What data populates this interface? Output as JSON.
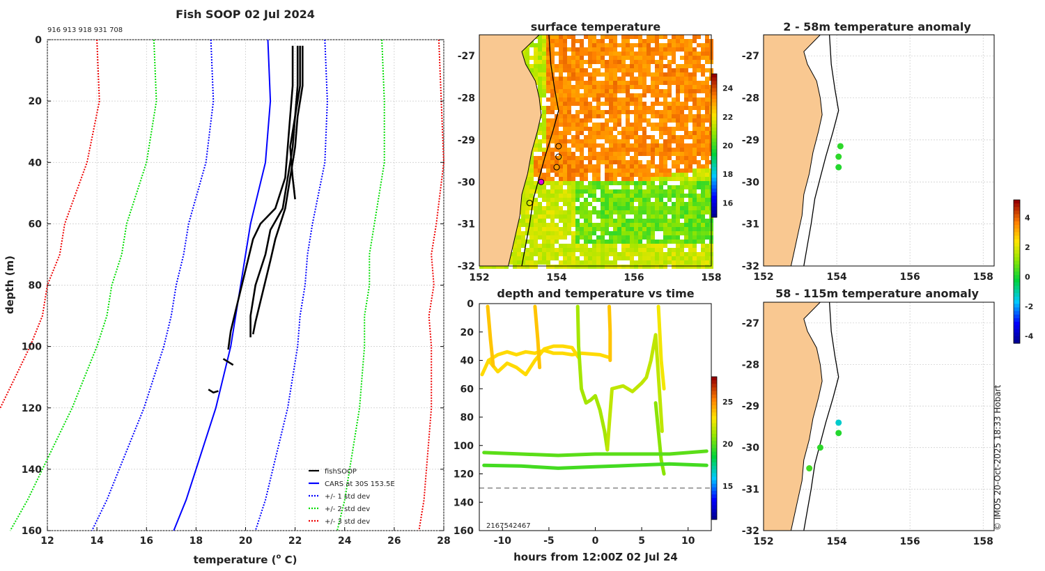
{
  "page_header": {
    "copyright": "© IMOS 20-Oct-2025 18:33 Hobart"
  },
  "chart_data": [
    {
      "id": "profile",
      "type": "line",
      "title": "Fish SOOP 02 Jul 2024",
      "id_text": "916 913 918 931 708",
      "xlabel": "temperature",
      "xlabel_sup": "o",
      "xlabel_tail": " C)",
      "ylabel": "depth (m)",
      "xlim": [
        12,
        28
      ],
      "ylim": [
        0,
        160
      ],
      "y_inverted": true,
      "xticks": [
        12,
        14,
        16,
        18,
        20,
        22,
        24,
        26,
        28
      ],
      "yticks": [
        0,
        20,
        40,
        60,
        80,
        100,
        120,
        140,
        160
      ],
      "legend_position": "bottom-right",
      "legend": [
        {
          "label": "fishSOOP",
          "color": "#000000",
          "style": "solid"
        },
        {
          "label": "CARS at 30S 153.5E",
          "color": "#0000ff",
          "style": "solid"
        },
        {
          "label": "+/- 1 std dev",
          "color": "#0000ff",
          "style": "dotted"
        },
        {
          "label": "+/- 2 std dev",
          "color": "#00dd00",
          "style": "dotted"
        },
        {
          "label": "+/- 3 std dev",
          "color": "#ee0000",
          "style": "dotted"
        }
      ],
      "cars_depth": [
        0,
        20,
        40,
        60,
        70,
        80,
        90,
        100,
        110,
        120,
        130,
        140,
        150,
        160
      ],
      "cars_mean": [
        20.9,
        21.0,
        20.8,
        20.2,
        20.0,
        19.8,
        19.6,
        19.4,
        19.1,
        18.8,
        18.4,
        18.0,
        17.6,
        17.1
      ],
      "std_dev": [
        2.3,
        2.3,
        2.4,
        2.5,
        2.5,
        2.6,
        2.6,
        2.7,
        2.8,
        2.9,
        3.0,
        3.1,
        3.2,
        3.3
      ],
      "fish_profiles": [
        {
          "depth": [
            2,
            15,
            25,
            35,
            45,
            55,
            60,
            65,
            75,
            85,
            95,
            101
          ],
          "temp": [
            21.9,
            21.9,
            21.8,
            21.7,
            21.6,
            21.2,
            20.6,
            20.3,
            20.0,
            19.7,
            19.4,
            19.3
          ]
        },
        {
          "depth": [
            2,
            15,
            25,
            35,
            45,
            55,
            62,
            70,
            80,
            90,
            97
          ],
          "temp": [
            22.1,
            22.1,
            22.0,
            21.9,
            21.7,
            21.5,
            21.0,
            20.8,
            20.4,
            20.2,
            20.2
          ]
        },
        {
          "depth": [
            2,
            15,
            25,
            35,
            45,
            55,
            65,
            72,
            82,
            92,
            96
          ],
          "temp": [
            22.3,
            22.3,
            22.1,
            22.0,
            21.8,
            21.6,
            21.2,
            21.0,
            20.7,
            20.4,
            20.3
          ]
        },
        {
          "depth": [
            2,
            15,
            25,
            35,
            45,
            52
          ],
          "temp": [
            22.2,
            22.2,
            22.0,
            21.8,
            21.9,
            22.0
          ]
        },
        {
          "depth": [
            104,
            105,
            106
          ],
          "temp": [
            19.1,
            19.3,
            19.5
          ]
        },
        {
          "depth": [
            114,
            115,
            114.5
          ],
          "temp": [
            18.5,
            18.7,
            18.9
          ]
        }
      ]
    },
    {
      "id": "sst",
      "type": "heatmap",
      "title": "surface temperature",
      "xlim": [
        152,
        158
      ],
      "ylim": [
        -32,
        -26.5
      ],
      "xticks": [
        152,
        154,
        156,
        158
      ],
      "yticks": [
        -27,
        -28,
        -29,
        -30,
        -31,
        -32
      ],
      "colorbar": {
        "min": 15,
        "max": 25,
        "ticks": [
          16,
          18,
          20,
          22,
          24
        ]
      },
      "stations": [
        {
          "lon": 154.05,
          "lat": -29.15,
          "highlight": false
        },
        {
          "lon": 154.05,
          "lat": -29.4,
          "highlight": false
        },
        {
          "lon": 154.0,
          "lat": -29.65,
          "highlight": false
        },
        {
          "lon": 153.6,
          "lat": -30.0,
          "highlight": true
        },
        {
          "lon": 153.3,
          "lat": -30.5,
          "highlight": false
        }
      ]
    },
    {
      "id": "anom1",
      "type": "scatter",
      "title": "2 - 58m temperature anomaly",
      "xlim": [
        152,
        158.3
      ],
      "ylim": [
        -32,
        -26.5
      ],
      "xticks": [
        152,
        154,
        156,
        158
      ],
      "yticks": [
        -27,
        -28,
        -29,
        -30,
        -31,
        -32
      ],
      "points": [
        {
          "lon": 154.1,
          "lat": -29.15,
          "anomaly": 0.3
        },
        {
          "lon": 154.05,
          "lat": -29.4,
          "anomaly": 0.3
        },
        {
          "lon": 154.05,
          "lat": -29.65,
          "anomaly": 0.2
        }
      ]
    },
    {
      "id": "anom2",
      "type": "scatter",
      "title": "58 - 115m temperature anomaly",
      "xlim": [
        152,
        158.3
      ],
      "ylim": [
        -32,
        -26.5
      ],
      "xticks": [
        152,
        154,
        156,
        158
      ],
      "yticks": [
        -27,
        -28,
        -29,
        -30,
        -31,
        -32
      ],
      "points": [
        {
          "lon": 154.05,
          "lat": -29.4,
          "anomaly": -1.2
        },
        {
          "lon": 154.05,
          "lat": -29.65,
          "anomaly": 0.2
        },
        {
          "lon": 153.55,
          "lat": -30.0,
          "anomaly": 0.3
        },
        {
          "lon": 153.25,
          "lat": -30.5,
          "anomaly": 0.5
        }
      ]
    },
    {
      "id": "anom_colorbar",
      "type": "colorbar",
      "min": -4.5,
      "max": 5.2,
      "ticks": [
        -4,
        -2,
        0,
        2,
        4
      ]
    },
    {
      "id": "depthtime",
      "type": "scatter",
      "title": "depth and temperature vs time",
      "xlabel": "hours from 12:00Z 02 Jul 24",
      "xlim": [
        -12.5,
        12.5
      ],
      "ylim": [
        0,
        160
      ],
      "y_inverted": true,
      "xticks": [
        -10,
        -5,
        0,
        5,
        10
      ],
      "yticks": [
        0,
        20,
        40,
        60,
        80,
        100,
        120,
        140,
        160
      ],
      "reference_depth": 130,
      "overlay_text": "2167542467",
      "colorbar": {
        "min": 11,
        "max": 28,
        "ticks": [
          15,
          20,
          25
        ]
      },
      "tracks": [
        {
          "t": [
            -12.2,
            -11.5,
            -10.5,
            -9.5,
            -8.5,
            -7.5,
            -6.5,
            -5.5,
            -4.5,
            -3.5,
            -2.5,
            -1.5,
            0.5,
            1.5
          ],
          "d": [
            50,
            40,
            36,
            34,
            36,
            34,
            35,
            33,
            35,
            35,
            36,
            35,
            36,
            38
          ],
          "temp": 23.5
        },
        {
          "t": [
            -11.5,
            -10.5,
            -9.5,
            -8.5,
            -7.5,
            -6.5,
            -5.5,
            -4.5,
            -3.5,
            -2.5,
            -1.8
          ],
          "d": [
            40,
            48,
            42,
            45,
            50,
            40,
            32,
            30,
            30,
            31,
            38
          ],
          "temp": 23.5
        },
        {
          "t": [
            -11.6,
            -11.3,
            -11.0
          ],
          "d": [
            2,
            25,
            44
          ],
          "temp": 24.0
        },
        {
          "t": [
            -6.5,
            -6.2,
            -6.0
          ],
          "d": [
            2,
            25,
            45
          ],
          "temp": 24.0
        },
        {
          "t": [
            -1.9,
            -1.8,
            -1.5,
            -1.0,
            -0.5,
            0.0,
            0.5,
            1.0,
            1.3
          ],
          "d": [
            2,
            30,
            60,
            70,
            68,
            65,
            75,
            90,
            103
          ],
          "temp": 21.5
        },
        {
          "t": [
            1.3,
            1.5,
            1.8,
            3.0,
            4.0,
            5.0,
            5.5,
            6.0,
            6.5,
            7.0,
            7.2
          ],
          "d": [
            103,
            85,
            60,
            58,
            62,
            56,
            52,
            40,
            22,
            70,
            90
          ],
          "temp": 22.0
        },
        {
          "t": [
            1.5,
            1.6,
            1.6
          ],
          "d": [
            2,
            20,
            40
          ],
          "temp": 24.0
        },
        {
          "t": [
            6.8,
            7.1,
            7.4
          ],
          "d": [
            2,
            40,
            60
          ],
          "temp": 23.0
        },
        {
          "t": [
            6.5,
            6.8,
            7.1,
            7.4
          ],
          "d": [
            70,
            90,
            110,
            120
          ],
          "temp": 21.0
        },
        {
          "t": [
            -12.0,
            -8.0,
            -4.0,
            0.0,
            4.0,
            8.0,
            12.0
          ],
          "d": [
            105,
            106,
            107,
            106,
            106,
            106,
            104
          ],
          "temp": 20.2
        },
        {
          "t": [
            -12.0,
            -8.0,
            -4.0,
            0.0,
            4.0,
            8.0,
            12.0
          ],
          "d": [
            114,
            114.5,
            116,
            115,
            114,
            113,
            114
          ],
          "temp": 19.8
        }
      ]
    }
  ]
}
